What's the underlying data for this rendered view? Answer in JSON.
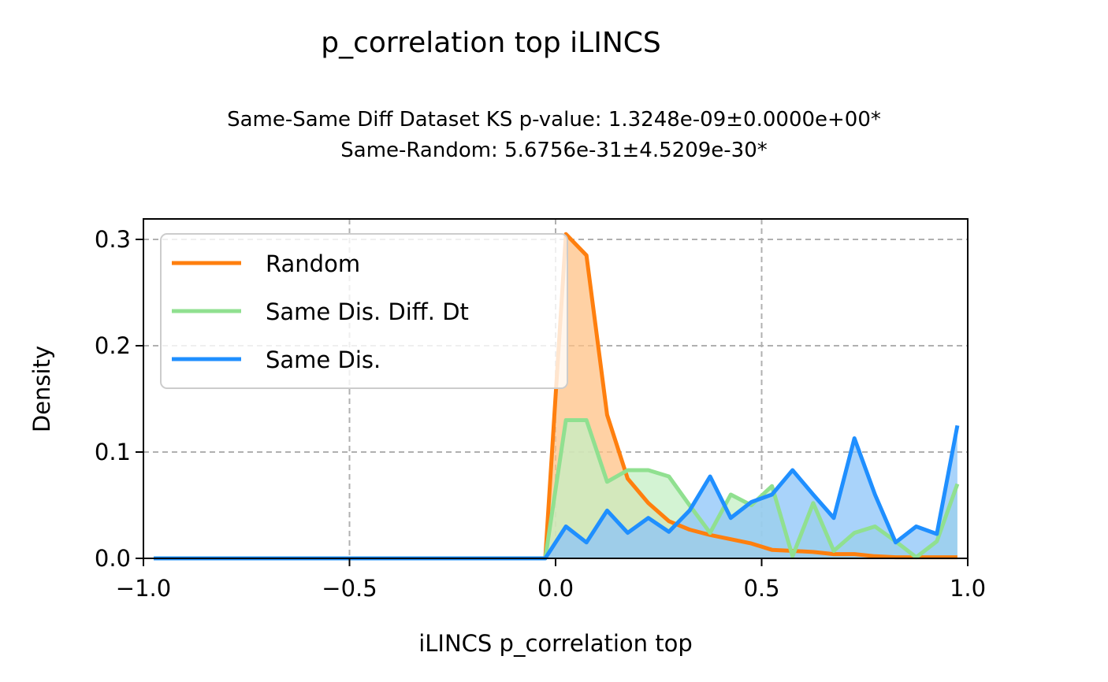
{
  "chart_data": {
    "type": "area",
    "title": "p_correlation top iLINCS",
    "subtitle_lines": [
      "Same-Same Diff Dataset  KS p-value: 1.3248e-09±0.0000e+00*",
      "Same-Random: 5.6756e-31±4.5209e-30*"
    ],
    "xlabel": "iLINCS p_correlation top",
    "ylabel": "Density",
    "xlim": [
      -1.0,
      1.0
    ],
    "ylim": [
      0,
      0.32
    ],
    "x_ticks": [
      -1.0,
      -0.5,
      0.0,
      0.5,
      1.0
    ],
    "x_tick_labels": [
      "−1.0",
      "−0.5",
      "0.0",
      "0.5",
      "1.0"
    ],
    "y_ticks": [
      0.0,
      0.1,
      0.2,
      0.3
    ],
    "y_tick_labels": [
      "0.0",
      "0.1",
      "0.2",
      "0.3"
    ],
    "grid": true,
    "legend_position": "top-left",
    "series": [
      {
        "name": "Random",
        "color": "#ff7f0e",
        "fill": "#ffc285",
        "points": [
          [
            -0.975,
            0
          ],
          [
            -0.925,
            0
          ],
          [
            -0.875,
            0
          ],
          [
            -0.825,
            0
          ],
          [
            -0.775,
            0
          ],
          [
            -0.725,
            0
          ],
          [
            -0.675,
            0
          ],
          [
            -0.625,
            0
          ],
          [
            -0.575,
            0
          ],
          [
            -0.525,
            0
          ],
          [
            -0.475,
            0
          ],
          [
            -0.425,
            0
          ],
          [
            -0.375,
            0
          ],
          [
            -0.325,
            0
          ],
          [
            -0.275,
            0
          ],
          [
            -0.225,
            0
          ],
          [
            -0.175,
            0
          ],
          [
            -0.125,
            0
          ],
          [
            -0.075,
            0
          ],
          [
            -0.025,
            0
          ],
          [
            0.025,
            0.305
          ],
          [
            0.075,
            0.285
          ],
          [
            0.125,
            0.135
          ],
          [
            0.175,
            0.075
          ],
          [
            0.225,
            0.052
          ],
          [
            0.275,
            0.035
          ],
          [
            0.325,
            0.027
          ],
          [
            0.375,
            0.022
          ],
          [
            0.425,
            0.018
          ],
          [
            0.475,
            0.014
          ],
          [
            0.525,
            0.008
          ],
          [
            0.575,
            0.007
          ],
          [
            0.625,
            0.006
          ],
          [
            0.675,
            0.004
          ],
          [
            0.725,
            0.004
          ],
          [
            0.775,
            0.002
          ],
          [
            0.825,
            0.001
          ],
          [
            0.875,
            0.001
          ],
          [
            0.925,
            0.001
          ],
          [
            0.975,
            0.001
          ]
        ]
      },
      {
        "name": "Same Dis. Diff. Dt",
        "color": "#90e090",
        "fill": "#c4efc4",
        "points": [
          [
            -0.975,
            0
          ],
          [
            -0.925,
            0
          ],
          [
            -0.875,
            0
          ],
          [
            -0.825,
            0
          ],
          [
            -0.775,
            0
          ],
          [
            -0.725,
            0
          ],
          [
            -0.675,
            0
          ],
          [
            -0.625,
            0
          ],
          [
            -0.575,
            0
          ],
          [
            -0.525,
            0
          ],
          [
            -0.475,
            0
          ],
          [
            -0.425,
            0
          ],
          [
            -0.375,
            0
          ],
          [
            -0.325,
            0
          ],
          [
            -0.275,
            0
          ],
          [
            -0.225,
            0
          ],
          [
            -0.175,
            0
          ],
          [
            -0.125,
            0
          ],
          [
            -0.075,
            0
          ],
          [
            -0.025,
            0
          ],
          [
            0.025,
            0.13
          ],
          [
            0.075,
            0.13
          ],
          [
            0.125,
            0.072
          ],
          [
            0.175,
            0.083
          ],
          [
            0.225,
            0.083
          ],
          [
            0.275,
            0.077
          ],
          [
            0.325,
            0.05
          ],
          [
            0.375,
            0.024
          ],
          [
            0.425,
            0.06
          ],
          [
            0.475,
            0.05
          ],
          [
            0.525,
            0.068
          ],
          [
            0.575,
            0.002
          ],
          [
            0.625,
            0.052
          ],
          [
            0.675,
            0.007
          ],
          [
            0.725,
            0.024
          ],
          [
            0.775,
            0.03
          ],
          [
            0.825,
            0.016
          ],
          [
            0.875,
            0.001
          ],
          [
            0.925,
            0.016
          ],
          [
            0.975,
            0.07
          ]
        ]
      },
      {
        "name": "Same Dis.",
        "color": "#1f8fff",
        "fill": "#8cc4f8",
        "points": [
          [
            -0.975,
            0
          ],
          [
            -0.925,
            0
          ],
          [
            -0.875,
            0
          ],
          [
            -0.825,
            0
          ],
          [
            -0.775,
            0
          ],
          [
            -0.725,
            0
          ],
          [
            -0.675,
            0
          ],
          [
            -0.625,
            0
          ],
          [
            -0.575,
            0
          ],
          [
            -0.525,
            0
          ],
          [
            -0.475,
            0
          ],
          [
            -0.425,
            0
          ],
          [
            -0.375,
            0
          ],
          [
            -0.325,
            0
          ],
          [
            -0.275,
            0
          ],
          [
            -0.225,
            0
          ],
          [
            -0.175,
            0
          ],
          [
            -0.125,
            0
          ],
          [
            -0.075,
            0
          ],
          [
            -0.025,
            0
          ],
          [
            0.025,
            0.03
          ],
          [
            0.075,
            0.015
          ],
          [
            0.125,
            0.045
          ],
          [
            0.175,
            0.024
          ],
          [
            0.225,
            0.038
          ],
          [
            0.275,
            0.025
          ],
          [
            0.325,
            0.045
          ],
          [
            0.375,
            0.077
          ],
          [
            0.425,
            0.038
          ],
          [
            0.475,
            0.053
          ],
          [
            0.525,
            0.06
          ],
          [
            0.575,
            0.083
          ],
          [
            0.625,
            0.06
          ],
          [
            0.675,
            0.038
          ],
          [
            0.725,
            0.113
          ],
          [
            0.775,
            0.06
          ],
          [
            0.825,
            0.015
          ],
          [
            0.875,
            0.03
          ],
          [
            0.925,
            0.023
          ],
          [
            0.975,
            0.125
          ]
        ]
      }
    ]
  }
}
